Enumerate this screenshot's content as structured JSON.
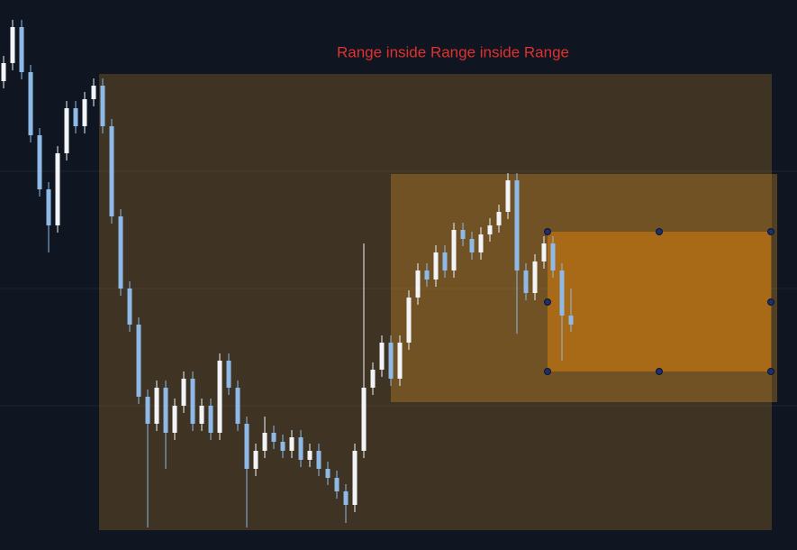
{
  "chart_data": {
    "type": "candlestick",
    "title": "Range inside Range inside Range",
    "ylim": [
      0,
      610
    ],
    "up_color": "#f2f4f7",
    "down_color": "#8fb9e6",
    "ohlc": [
      [
        520,
        548,
        512,
        540
      ],
      [
        540,
        588,
        532,
        580
      ],
      [
        580,
        588,
        522,
        530
      ],
      [
        530,
        538,
        452,
        460
      ],
      [
        460,
        468,
        392,
        400
      ],
      [
        400,
        408,
        330,
        360
      ],
      [
        360,
        448,
        352,
        440
      ],
      [
        440,
        498,
        432,
        490
      ],
      [
        490,
        498,
        462,
        470
      ],
      [
        470,
        508,
        462,
        500
      ],
      [
        500,
        523,
        492,
        515
      ],
      [
        515,
        523,
        462,
        470
      ],
      [
        470,
        478,
        362,
        370
      ],
      [
        370,
        378,
        282,
        290
      ],
      [
        290,
        298,
        242,
        250
      ],
      [
        250,
        258,
        162,
        170
      ],
      [
        170,
        178,
        25,
        140
      ],
      [
        140,
        188,
        132,
        180
      ],
      [
        180,
        188,
        90,
        130
      ],
      [
        130,
        168,
        122,
        160
      ],
      [
        160,
        198,
        152,
        190
      ],
      [
        190,
        198,
        132,
        140
      ],
      [
        140,
        168,
        132,
        160
      ],
      [
        160,
        168,
        122,
        130
      ],
      [
        130,
        218,
        122,
        210
      ],
      [
        210,
        218,
        172,
        180
      ],
      [
        180,
        188,
        132,
        140
      ],
      [
        140,
        148,
        25,
        90
      ],
      [
        90,
        118,
        82,
        110
      ],
      [
        110,
        148,
        102,
        130
      ],
      [
        130,
        138,
        112,
        120
      ],
      [
        120,
        128,
        102,
        110
      ],
      [
        110,
        133,
        102,
        125
      ],
      [
        125,
        133,
        92,
        100
      ],
      [
        100,
        118,
        92,
        110
      ],
      [
        110,
        118,
        82,
        90
      ],
      [
        90,
        98,
        72,
        80
      ],
      [
        80,
        88,
        57,
        65
      ],
      [
        65,
        73,
        30,
        50
      ],
      [
        50,
        118,
        42,
        110
      ],
      [
        110,
        340,
        102,
        180
      ],
      [
        180,
        208,
        172,
        200
      ],
      [
        200,
        238,
        192,
        230
      ],
      [
        230,
        238,
        182,
        190
      ],
      [
        190,
        238,
        182,
        230
      ],
      [
        230,
        288,
        222,
        280
      ],
      [
        280,
        318,
        272,
        310
      ],
      [
        310,
        318,
        292,
        300
      ],
      [
        300,
        338,
        292,
        330
      ],
      [
        330,
        338,
        302,
        310
      ],
      [
        310,
        363,
        302,
        355
      ],
      [
        355,
        363,
        337,
        345
      ],
      [
        345,
        353,
        322,
        330
      ],
      [
        330,
        358,
        322,
        350
      ],
      [
        350,
        368,
        342,
        360
      ],
      [
        360,
        383,
        352,
        375
      ],
      [
        375,
        418,
        367,
        410
      ],
      [
        410,
        418,
        240,
        310
      ],
      [
        310,
        318,
        277,
        285
      ],
      [
        285,
        328,
        277,
        320
      ],
      [
        320,
        348,
        312,
        340
      ],
      [
        340,
        348,
        302,
        310
      ],
      [
        310,
        318,
        210,
        260
      ],
      [
        260,
        290,
        242,
        250
      ]
    ]
  }
}
